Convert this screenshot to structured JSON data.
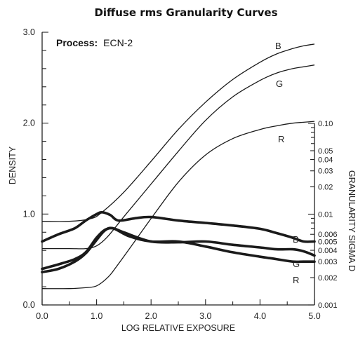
{
  "chart_data": {
    "type": "line",
    "title": "Diffuse rms Granularity Curves",
    "annotation": {
      "key": "Process:",
      "value": "ECN-2"
    },
    "xlabel": "LOG RELATIVE EXPOSURE",
    "ylabel": "DENSITY",
    "y2label": "GRANULARITY SIGMA D",
    "xlim": [
      0,
      5
    ],
    "ylim": [
      0,
      3
    ],
    "y2lim": [
      0.001,
      0.1
    ],
    "y2_scale": "log",
    "x_ticks": [
      "0.0",
      "1.0",
      "2.0",
      "3.0",
      "4.0",
      "5.0"
    ],
    "y_ticks": [
      "0.0",
      "1.0",
      "2.0",
      "3.0"
    ],
    "y2_ticks": [
      "0.001",
      "0.002",
      "0.003",
      "0.004",
      "0.005",
      "0.006",
      "0.01",
      "0.02",
      "0.03",
      "0.04",
      "0.05",
      "0.10"
    ],
    "density_series": [
      {
        "name": "B",
        "x": [
          0,
          0.5,
          0.9,
          1.1,
          1.5,
          2.0,
          2.5,
          3.0,
          3.5,
          4.0,
          4.3,
          4.6,
          4.8,
          5.0
        ],
        "y": [
          0.92,
          0.92,
          0.95,
          1.02,
          1.24,
          1.58,
          1.93,
          2.23,
          2.48,
          2.67,
          2.76,
          2.82,
          2.85,
          2.87
        ]
      },
      {
        "name": "G",
        "x": [
          0,
          0.5,
          0.8,
          1.0,
          1.2,
          1.5,
          2.0,
          2.5,
          3.0,
          3.5,
          4.0,
          4.3,
          4.6,
          4.8,
          5.0
        ],
        "y": [
          0.62,
          0.62,
          0.62,
          0.65,
          0.75,
          0.97,
          1.33,
          1.69,
          2.03,
          2.29,
          2.47,
          2.55,
          2.6,
          2.62,
          2.64
        ]
      },
      {
        "name": "R",
        "x": [
          0,
          0.5,
          0.8,
          1.0,
          1.2,
          1.4,
          2.0,
          2.5,
          3.0,
          3.5,
          4.0,
          4.3,
          4.6,
          4.8,
          5.0
        ],
        "y": [
          0.18,
          0.18,
          0.19,
          0.21,
          0.3,
          0.45,
          0.95,
          1.35,
          1.65,
          1.83,
          1.93,
          1.97,
          2.0,
          2.01,
          2.02
        ]
      }
    ],
    "granularity_series": [
      {
        "name": "B",
        "x": [
          0,
          0.3,
          0.6,
          0.8,
          1.0,
          1.1,
          1.25,
          1.4,
          1.7,
          2.0,
          2.5,
          3.0,
          3.5,
          4.0,
          4.3,
          4.6,
          4.8,
          5.0
        ],
        "y": [
          0.005,
          0.006,
          0.007,
          0.0085,
          0.01,
          0.0105,
          0.0098,
          0.0085,
          0.009,
          0.0093,
          0.0085,
          0.008,
          0.0075,
          0.0069,
          0.0062,
          0.0055,
          0.005,
          0.005
        ]
      },
      {
        "name": "G",
        "x": [
          0,
          0.3,
          0.6,
          0.8,
          1.0,
          1.15,
          1.3,
          1.5,
          2.0,
          2.5,
          3.0,
          3.5,
          4.0,
          4.3,
          4.6,
          4.8,
          5.0
        ],
        "y": [
          0.0025,
          0.0028,
          0.0032,
          0.0038,
          0.0055,
          0.0067,
          0.007,
          0.0063,
          0.005,
          0.0049,
          0.005,
          0.0046,
          0.0043,
          0.0041,
          0.0041,
          0.0039,
          0.0035
        ]
      },
      {
        "name": "R",
        "x": [
          0,
          0.3,
          0.6,
          0.8,
          1.0,
          1.15,
          1.3,
          1.6,
          2.0,
          2.5,
          3.0,
          3.5,
          4.0,
          4.3,
          4.6,
          4.8,
          5.0
        ],
        "y": [
          0.0023,
          0.0025,
          0.003,
          0.0037,
          0.0052,
          0.0066,
          0.007,
          0.0057,
          0.005,
          0.005,
          0.0044,
          0.0038,
          0.0034,
          0.0032,
          0.003,
          0.003,
          0.003
        ]
      }
    ]
  }
}
